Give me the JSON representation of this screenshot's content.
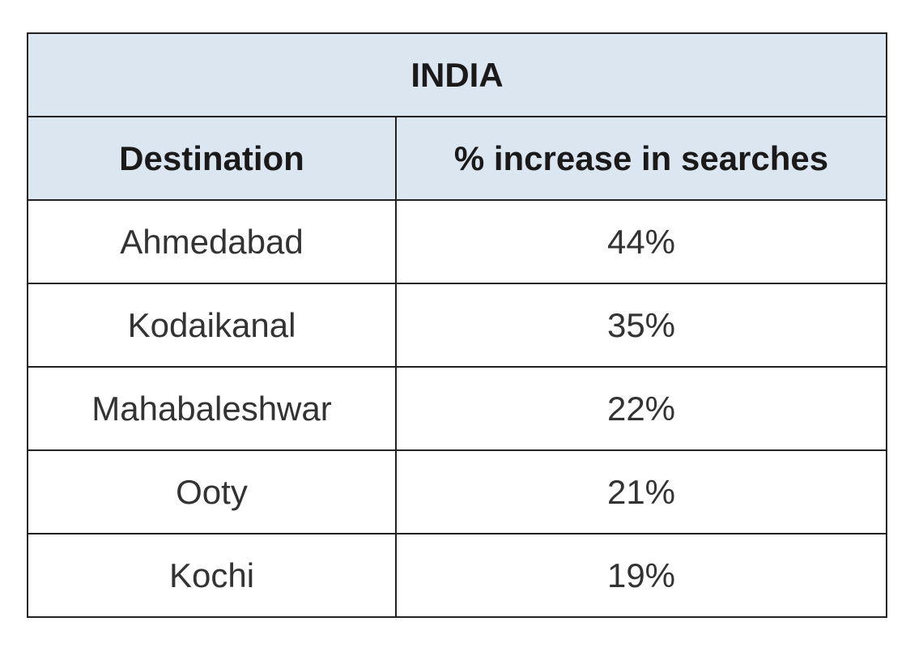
{
  "chart_data": {
    "type": "table",
    "title": "INDIA",
    "columns": [
      "Destination",
      "% increase in searches"
    ],
    "rows": [
      {
        "destination": "Ahmedabad",
        "increase": "44%"
      },
      {
        "destination": "Kodaikanal",
        "increase": "35%"
      },
      {
        "destination": "Mahabaleshwar",
        "increase": "22%"
      },
      {
        "destination": "Ooty",
        "increase": "21%"
      },
      {
        "destination": "Kochi",
        "increase": "19%"
      }
    ],
    "values": [
      44,
      35,
      22,
      21,
      19
    ]
  },
  "colors": {
    "header_bg": "#dce6f1",
    "border": "#222222",
    "text": "#333333"
  }
}
